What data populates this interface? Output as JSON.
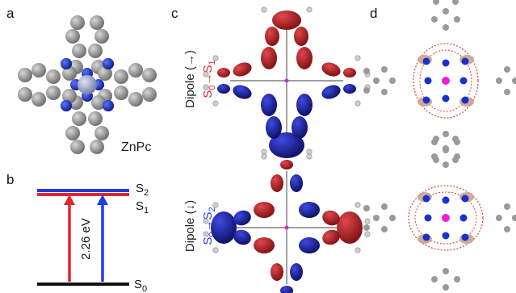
{
  "panels": {
    "a": {
      "label": "a",
      "molecule_label": "ZnPc"
    },
    "b": {
      "label": "b",
      "levels": {
        "S2": {
          "base": "S",
          "sub": "2"
        },
        "S1": {
          "base": "S",
          "sub": "1"
        },
        "S0": {
          "base": "S",
          "sub": "0"
        }
      },
      "gap_label": "2.26 eV"
    },
    "c": {
      "label": "c",
      "dipole_h": {
        "text": "Dipole (→)",
        "transition": {
          "from": "S",
          "from_sub": "0",
          "arrow": "→",
          "to": "S",
          "to_sub": "1"
        }
      },
      "dipole_v": {
        "text": "Dipole (↓)",
        "transition": {
          "from": "S",
          "from_sub": "0",
          "arrow": "→",
          "to": "S",
          "to_sub": "2"
        }
      }
    },
    "d": {
      "label": "d"
    }
  },
  "colors": {
    "red": "#e3262b",
    "blue": "#1f3ce8",
    "black": "#111111",
    "lobe_red": "#b0181f",
    "lobe_blue": "#14188f",
    "carbon": "#8e8e8e",
    "nitrogen": "#1a2fb0",
    "zinc": "#9aa3c4",
    "hydrogen": "#dcdcdc",
    "magenta": "#f21bd7",
    "dash": "#e23b2e"
  }
}
